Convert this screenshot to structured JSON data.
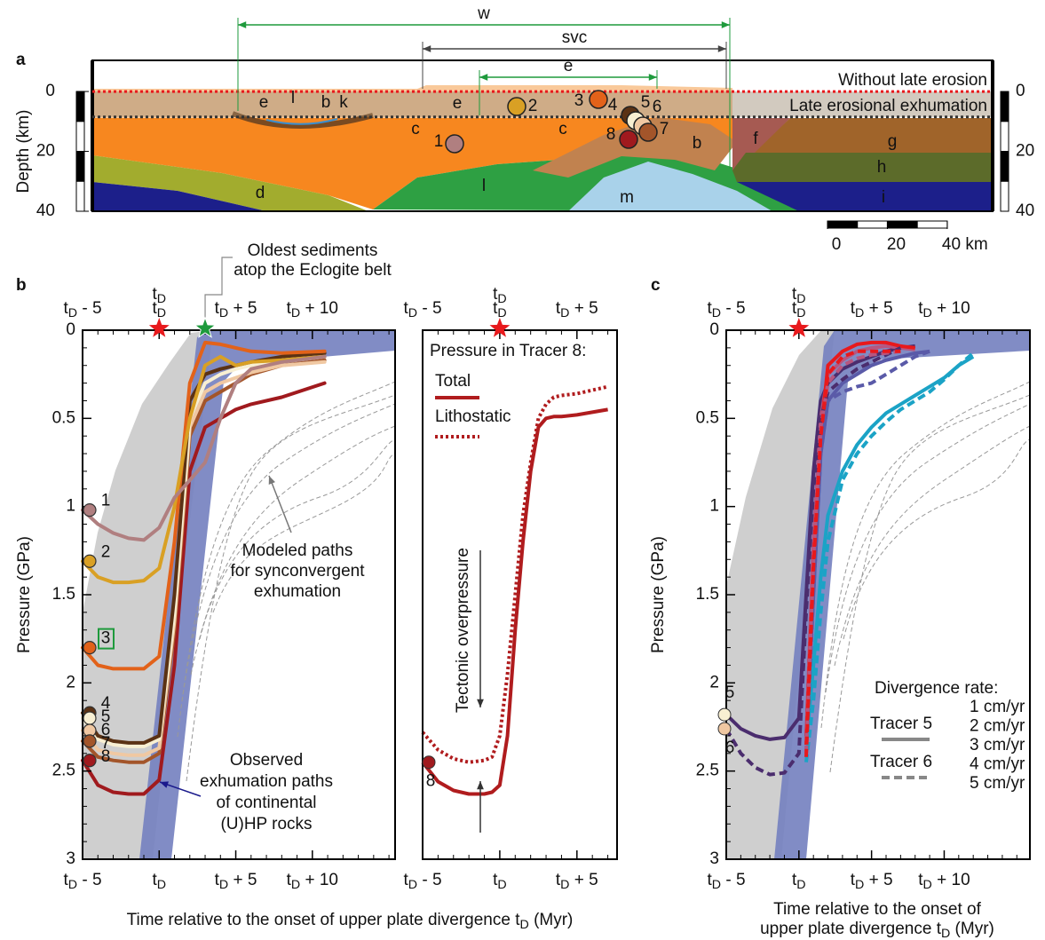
{
  "chart_data": [
    {
      "type": "section",
      "panel_label": "a",
      "ylabel": "Depth (km)",
      "ylim": [
        -10.4,
        40
      ],
      "yticks": [
        0,
        20,
        40
      ],
      "spans": [
        {
          "label": "w",
          "color": "#1e9a3c"
        },
        {
          "label": "svc",
          "color": "#444444"
        },
        {
          "label": "e",
          "color": "#1e9a3c"
        }
      ],
      "levels": [
        {
          "label": "Without late erosion",
          "depth": 0,
          "color": "#e8191c"
        },
        {
          "label": "Late erosional exhumation",
          "depth": 8.5,
          "color": "#333333"
        }
      ],
      "units": [
        "e",
        "l",
        "b",
        "k",
        "e",
        "c",
        "c",
        "b",
        "f",
        "g",
        "h",
        "i",
        "d",
        "l",
        "m"
      ],
      "tracers": [
        "1",
        "2",
        "3",
        "4",
        "5",
        "6",
        "7",
        "8"
      ],
      "scale_ticks": [
        0,
        20,
        {
          "value": 40,
          "label": "40 km"
        }
      ]
    },
    {
      "type": "line",
      "panel_label": "b",
      "ylabel": "Pressure (GPa)",
      "xlabel": "Time relative to the onset of upper plate divergence tD (Myr)",
      "xlim": [
        -5,
        15.4
      ],
      "ylim": [
        0,
        3
      ],
      "invert_y": true,
      "xticks": [
        {
          "value": -5,
          "label": "tD - 5"
        },
        {
          "value": 0,
          "label": "tD"
        },
        {
          "value": 5,
          "label": "tD + 5"
        },
        {
          "value": 10,
          "label": "tD + 10"
        }
      ],
      "yticks": [
        0,
        0.5,
        1,
        1.5,
        2,
        2.5,
        3
      ],
      "tD_marker": {
        "label": "tD",
        "x": 0,
        "color": "#e8191c"
      },
      "sediment_marker": {
        "lines": [
          "Oldest sediments",
          "atop the Eclogite belt"
        ],
        "x": 3,
        "color": "#1e9a3c"
      },
      "annotations": [
        {
          "lines": [
            "Modeled paths",
            "for synconvergent",
            "exhumation"
          ],
          "color": "#777777"
        },
        {
          "lines": [
            "Observed",
            "exhumation paths",
            "of continental",
            "(U)HP rocks"
          ],
          "color": "#1a1a8c"
        }
      ],
      "x": [
        -5,
        -4,
        -3,
        -2,
        -1,
        0,
        1,
        2,
        3,
        4,
        5,
        6,
        8,
        10.8
      ],
      "series": [
        {
          "name": "1",
          "color": "#b07f80",
          "values": [
            1.02,
            1.1,
            1.15,
            1.18,
            1.19,
            1.12,
            0.95,
            0.85,
            0.75,
            0.5,
            0.3,
            0.22,
            0.18,
            0.15
          ]
        },
        {
          "name": "2",
          "color": "#d9a024",
          "values": [
            1.31,
            1.4,
            1.43,
            1.43,
            1.42,
            1.35,
            1.0,
            0.5,
            0.2,
            0.15,
            0.2,
            0.18,
            0.17,
            0.15
          ]
        },
        {
          "name": "3",
          "color": "#e2621a",
          "boxed": true,
          "values": [
            1.8,
            1.9,
            1.92,
            1.92,
            1.92,
            1.85,
            1.2,
            0.3,
            0.07,
            0.08,
            0.1,
            0.12,
            0.13,
            0.12
          ]
        },
        {
          "name": "4",
          "color": "#5b3214",
          "values": [
            2.17,
            2.3,
            2.33,
            2.34,
            2.34,
            2.3,
            1.5,
            0.4,
            0.25,
            0.22,
            0.2,
            0.18,
            0.15,
            0.13
          ]
        },
        {
          "name": "5",
          "color": "#f8efd2",
          "values": [
            2.2,
            2.32,
            2.35,
            2.36,
            2.36,
            2.32,
            1.6,
            0.5,
            0.3,
            0.25,
            0.22,
            0.2,
            0.17,
            0.15
          ]
        },
        {
          "name": "6",
          "color": "#f0c8a2",
          "values": [
            2.27,
            2.38,
            2.4,
            2.41,
            2.41,
            2.37,
            1.65,
            0.55,
            0.35,
            0.3,
            0.27,
            0.24,
            0.2,
            0.18
          ]
        },
        {
          "name": "7",
          "color": "#a3552a",
          "values": [
            2.33,
            2.42,
            2.44,
            2.45,
            2.45,
            2.4,
            1.7,
            0.6,
            0.4,
            0.35,
            0.3,
            0.25,
            0.2,
            0.17
          ]
        },
        {
          "name": "8",
          "color": "#a01a1e",
          "values": [
            2.44,
            2.58,
            2.62,
            2.63,
            2.63,
            2.55,
            1.9,
            0.8,
            0.55,
            0.5,
            0.45,
            0.42,
            0.38,
            0.3
          ]
        }
      ]
    },
    {
      "type": "line",
      "xlim": [
        -5,
        7.6
      ],
      "ylim": [
        0,
        3
      ],
      "invert_y": true,
      "xticks": [
        {
          "value": -5,
          "label": "tD - 5"
        },
        {
          "value": 0,
          "label": "tD"
        },
        {
          "value": 5,
          "label": "tD + 5"
        }
      ],
      "tD_marker": {
        "label": "tD",
        "x": 0,
        "color": "#e8191c"
      },
      "legend_title": "Pressure in Tracer 8:",
      "start_label": "8",
      "annotation": "Tectonic overpressure",
      "x": [
        -5,
        -4,
        -3,
        -2,
        -1,
        -0.5,
        0,
        0.5,
        1,
        1.5,
        2,
        2.5,
        3,
        3.5,
        4,
        5,
        7
      ],
      "series": [
        {
          "name": "Total",
          "color": "#b01c1e",
          "style": "solid",
          "values": [
            2.45,
            2.56,
            2.61,
            2.63,
            2.63,
            2.62,
            2.58,
            2.3,
            1.7,
            1.2,
            0.8,
            0.55,
            0.5,
            0.49,
            0.49,
            0.48,
            0.45
          ]
        },
        {
          "name": "Lithostatic",
          "color": "#b01c1e",
          "style": "dotted",
          "values": [
            2.28,
            2.38,
            2.43,
            2.45,
            2.44,
            2.42,
            2.3,
            1.95,
            1.5,
            1.05,
            0.75,
            0.5,
            0.42,
            0.38,
            0.37,
            0.36,
            0.32
          ]
        }
      ]
    },
    {
      "type": "line",
      "panel_label": "c",
      "ylabel": "Pressure (GPa)",
      "xlabel": [
        "Time relative to the onset of",
        "upper plate divergence tD (Myr)"
      ],
      "xlim": [
        -5,
        15.9
      ],
      "ylim": [
        0,
        3
      ],
      "invert_y": true,
      "xticks": [
        {
          "value": -5,
          "label": "tD - 5"
        },
        {
          "value": 0,
          "label": "tD"
        },
        {
          "value": 5,
          "label": "tD + 5"
        },
        {
          "value": 10,
          "label": "tD + 10"
        }
      ],
      "yticks": [
        0,
        0.5,
        1,
        1.5,
        2,
        2.5,
        3
      ],
      "tD_marker": {
        "label": "tD",
        "x": 0,
        "color": "#e8191c"
      },
      "legend_title": "Divergence rate:",
      "rates": [
        {
          "name": "1 cm/yr",
          "color": "#1ba3c6"
        },
        {
          "name": "2 cm/yr",
          "color": "#5a5aa8"
        },
        {
          "name": "3 cm/yr",
          "color": "#4b2d6e"
        },
        {
          "name": "4 cm/yr",
          "color": "#b7567f"
        },
        {
          "name": "5 cm/yr",
          "color": "#e8191c"
        }
      ],
      "x": [
        -5,
        -4,
        -3,
        -2,
        -1,
        0,
        0.5,
        1,
        1.5,
        2,
        3,
        4,
        5,
        6,
        7,
        8,
        9,
        10,
        11,
        12
      ],
      "tracers": [
        {
          "name": "Tracer 5",
          "label": "5",
          "color": "#f8efd2",
          "style": "solid",
          "runs": [
            [
              null,
              null,
              null,
              null,
              null,
              null,
              2.35,
              1.9,
              1.4,
              1.05,
              0.8,
              0.65,
              0.55,
              0.47,
              0.42,
              0.37,
              0.32,
              0.27,
              0.2,
              0.15
            ],
            [
              null,
              null,
              null,
              null,
              null,
              null,
              2.3,
              1.5,
              0.7,
              0.4,
              0.3,
              0.25,
              0.2,
              0.17,
              0.15,
              0.13,
              0.12,
              null,
              null,
              null
            ],
            [
              2.18,
              2.26,
              2.3,
              2.32,
              2.31,
              2.2,
              1.5,
              0.8,
              0.4,
              0.3,
              0.22,
              0.18,
              0.15,
              0.12,
              0.1,
              0.09,
              null,
              null,
              null,
              null
            ],
            [
              null,
              null,
              null,
              null,
              null,
              null,
              2.3,
              1.2,
              0.5,
              0.25,
              0.17,
              0.12,
              0.1,
              0.09,
              0.1,
              0.11,
              null,
              null,
              null,
              null
            ],
            [
              null,
              null,
              null,
              null,
              null,
              null,
              2.35,
              1.3,
              0.6,
              0.2,
              0.12,
              0.08,
              0.07,
              0.07,
              0.09,
              0.1,
              null,
              null,
              null,
              null
            ]
          ]
        },
        {
          "name": "Tracer 6",
          "label": "6",
          "color": "#f0c8a2",
          "style": "dashed",
          "runs": [
            [
              null,
              null,
              null,
              null,
              null,
              null,
              2.45,
              2.1,
              1.6,
              1.2,
              0.85,
              0.7,
              0.6,
              0.52,
              0.45,
              0.4,
              0.35,
              0.28,
              0.2,
              0.13
            ],
            [
              null,
              null,
              null,
              null,
              null,
              null,
              2.4,
              1.5,
              0.7,
              0.4,
              0.35,
              0.32,
              0.3,
              0.25,
              0.2,
              0.15,
              0.12,
              null,
              null,
              null
            ],
            [
              2.26,
              2.4,
              2.48,
              2.52,
              2.51,
              2.4,
              1.6,
              0.9,
              0.5,
              0.35,
              0.28,
              0.22,
              0.18,
              0.14,
              0.1,
              null,
              null,
              null,
              null,
              null
            ],
            [
              null,
              null,
              null,
              null,
              null,
              null,
              2.4,
              1.3,
              0.55,
              0.3,
              0.2,
              0.16,
              0.14,
              0.13,
              0.12,
              null,
              null,
              null,
              null,
              null
            ],
            [
              null,
              null,
              null,
              null,
              null,
              null,
              2.42,
              1.35,
              0.6,
              0.25,
              0.15,
              0.12,
              0.12,
              0.12,
              0.12,
              null,
              null,
              null,
              null,
              null
            ]
          ]
        }
      ]
    }
  ]
}
